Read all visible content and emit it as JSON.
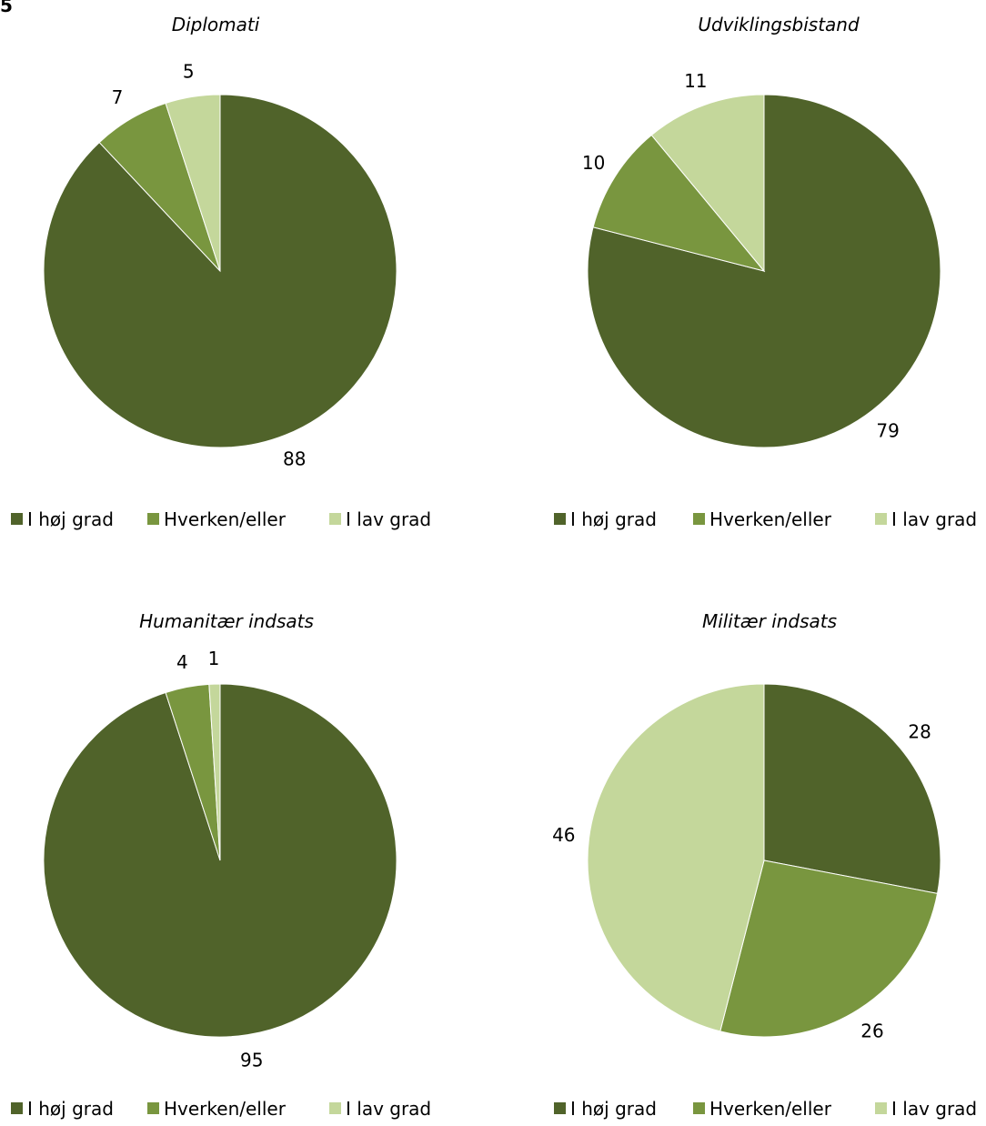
{
  "corner_label": "5",
  "legend_labels": [
    "I høj grad",
    "Hverken/eller",
    "I lav grad"
  ],
  "colors": [
    "#50632a",
    "#79963f",
    "#c4d79b"
  ],
  "chart_data": [
    {
      "type": "pie",
      "title": "Diplomati",
      "categories": [
        "I høj grad",
        "Hverken/eller",
        "I lav grad"
      ],
      "values": [
        88,
        7,
        5
      ],
      "legend": "bottom"
    },
    {
      "type": "pie",
      "title": "Udviklingsbistand",
      "categories": [
        "I høj grad",
        "Hverken/eller",
        "I lav grad"
      ],
      "values": [
        79,
        10,
        11
      ],
      "legend": "bottom"
    },
    {
      "type": "pie",
      "title": "Humanitær indsats",
      "categories": [
        "I høj grad",
        "Hverken/eller",
        "I lav grad"
      ],
      "values": [
        95,
        4,
        1
      ],
      "legend": "bottom"
    },
    {
      "type": "pie",
      "title": "Militær indsats",
      "categories": [
        "I høj grad",
        "Hverken/eller",
        "I lav grad"
      ],
      "values": [
        28,
        26,
        46
      ],
      "legend": "bottom"
    }
  ]
}
